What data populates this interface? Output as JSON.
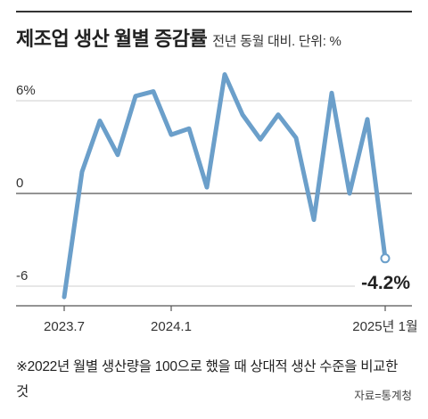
{
  "chart_data": {
    "type": "line",
    "title": "제조업 생산 월별 증감률",
    "subtitle": "전년 동월 대비. 단위: %",
    "x": [
      "2023.7",
      "2023.8",
      "2023.9",
      "2023.10",
      "2023.11",
      "2023.12",
      "2024.1",
      "2024.2",
      "2024.3",
      "2024.4",
      "2024.5",
      "2024.6",
      "2024.7",
      "2024.8",
      "2024.9",
      "2024.10",
      "2024.11",
      "2024.12",
      "2025.1"
    ],
    "values": [
      -6.7,
      1.4,
      4.7,
      2.5,
      6.3,
      6.6,
      3.8,
      4.2,
      0.4,
      7.7,
      5.1,
      3.5,
      5.1,
      3.6,
      -1.7,
      6.5,
      0.0,
      4.8,
      -4.2
    ],
    "ylim": [
      -7,
      8
    ],
    "yticks": [
      {
        "value": 6,
        "label": "6%"
      },
      {
        "value": 0,
        "label": "0"
      },
      {
        "value": -6,
        "label": "-6"
      }
    ],
    "xticks": [
      {
        "index": 0,
        "label": "2023.7"
      },
      {
        "index": 6,
        "label": "2024.1"
      },
      {
        "index": 18,
        "label": "2025년 1월"
      }
    ],
    "last_label": "-4.2%",
    "grid": true,
    "line_color": "#6b9fca"
  },
  "footnote": "※2022년 월별 생산량을 100으로 했을 때 상대적 생산 수준을 비교한 것",
  "source": "자료=통계청"
}
